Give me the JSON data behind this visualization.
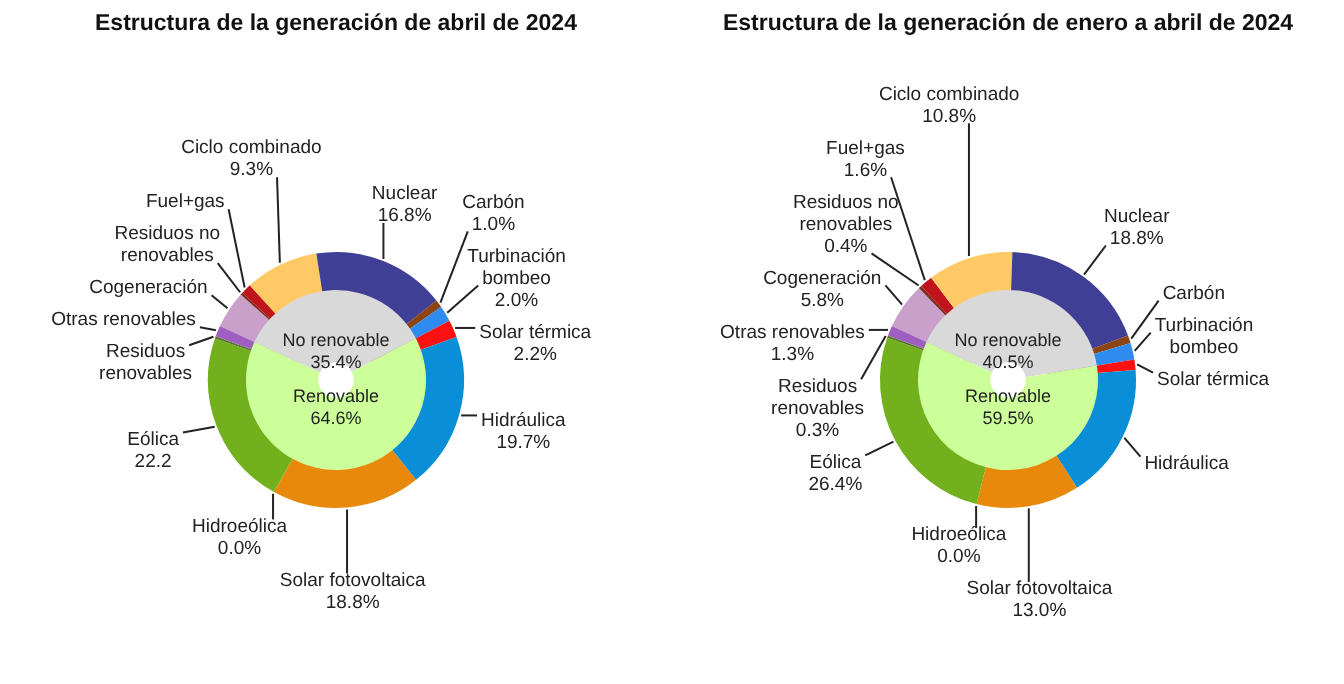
{
  "chart_data": [
    {
      "type": "donut",
      "title": "Estructura de la generación de abril de 2024",
      "categories": [
        "Cogeneración",
        "Residuos no renovables",
        "Fuel+gas",
        "Ciclo combinado",
        "Nuclear",
        "Carbón",
        "Turbinación bombeo",
        "Solar térmica",
        "Hidráulica",
        "Solar fotovoltaica",
        "Hidroeólica",
        "Eólica",
        "Residuos renovables",
        "Otras renovables"
      ],
      "values": [
        4.7,
        0.3,
        1.3,
        9.3,
        16.8,
        1.0,
        2.0,
        2.2,
        19.7,
        18.8,
        0.0,
        22.2,
        0.3,
        1.4
      ],
      "colors": [
        "#c9a0c9",
        "#7b2c1c",
        "#c0141c",
        "#ffc966",
        "#3f3f96",
        "#8b4513",
        "#2e8bef",
        "#ff1010",
        "#0a8fd6",
        "#e8890c",
        "#2e6b2e",
        "#72b01d",
        "#5b7a2a",
        "#9e5fc0"
      ],
      "value_labels": [
        null,
        null,
        null,
        "9.3%",
        "16.8%",
        "1.0%",
        "2.0%",
        "2.2%",
        "19.7%",
        "18.8%",
        "0.0%",
        "22.2",
        null,
        null
      ]
    },
    {
      "type": "donut",
      "categories": [
        "No renovable",
        "Renovable"
      ],
      "values": [
        35.4,
        64.6
      ],
      "colors": [
        "#d9d9d9",
        "#ccff99"
      ],
      "value_labels": [
        "35.4%",
        "64.6%"
      ]
    },
    {
      "type": "donut",
      "title": "Estructura de la generación de enero a abril de 2024",
      "categories": [
        "Cogeneración",
        "Residuos no renovables",
        "Fuel+gas",
        "Ciclo combinado",
        "Nuclear",
        "Carbón",
        "Turbinación bombeo",
        "Solar térmica",
        "Hidráulica",
        "Solar fotovoltaica",
        "Hidroeólica",
        "Eólica",
        "Residuos renovables",
        "Otras renovables"
      ],
      "values": [
        5.8,
        0.4,
        1.6,
        10.8,
        18.8,
        1.0,
        2.1,
        1.3,
        17.2,
        13.0,
        0.0,
        26.4,
        0.3,
        1.3
      ],
      "colors": [
        "#c9a0c9",
        "#7b2c1c",
        "#c0141c",
        "#ffc966",
        "#3f3f96",
        "#8b4513",
        "#2e8bef",
        "#ff1010",
        "#0a8fd6",
        "#e8890c",
        "#2e6b2e",
        "#72b01d",
        "#5b7a2a",
        "#9e5fc0"
      ],
      "value_labels": [
        "5.8%",
        "0.4%",
        "1.6%",
        "10.8%",
        "18.8%",
        null,
        null,
        null,
        null,
        "13.0%",
        "0.0%",
        "26.4%",
        "0.3%",
        "1.3%"
      ]
    },
    {
      "type": "donut",
      "categories": [
        "No renovable",
        "Renovable"
      ],
      "values": [
        40.5,
        59.5
      ],
      "colors": [
        "#d9d9d9",
        "#ccff99"
      ],
      "value_labels": [
        "40.5%",
        "59.5%"
      ]
    }
  ]
}
